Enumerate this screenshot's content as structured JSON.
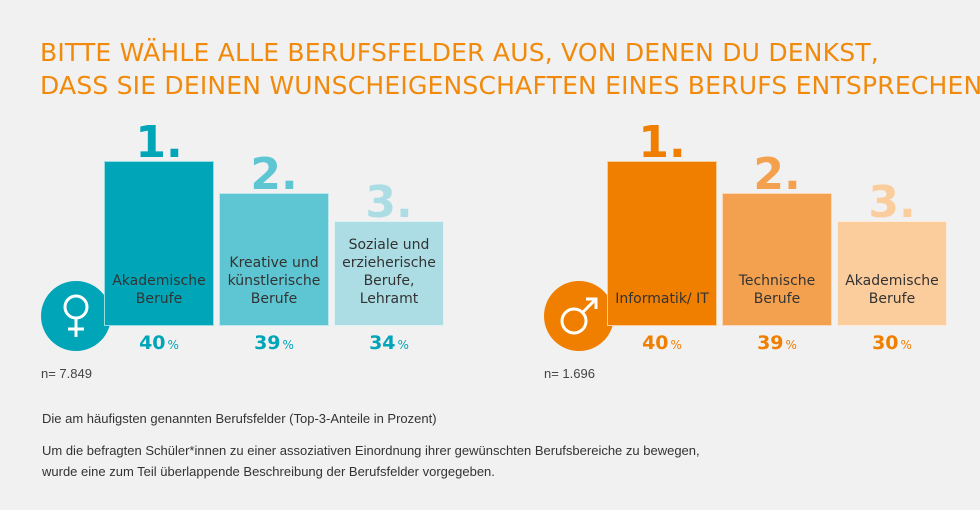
{
  "title_lines": [
    "BITTE WÄHLE ALLE BERUFSFELDER AUS, VON DENEN DU DENKST,",
    "DASS SIE DEINEN WUNSCHEIGENSCHAFTEN EINES BERUFS ENTSPRECHEN."
  ],
  "chart_data": [
    {
      "type": "bar",
      "group": "female",
      "icon": "female-symbol-icon",
      "n_label": "n= 7.849",
      "categories": [
        "Akademische Berufe",
        "Kreative und künstlerische Berufe",
        "Soziale und erzieherische Berufe, Lehramt"
      ],
      "ranks": [
        "1.",
        "2.",
        "3."
      ],
      "values": [
        40,
        39,
        34
      ],
      "value_labels": [
        "40",
        "39",
        "34"
      ],
      "unit": "%",
      "colors": [
        "#00a5b8",
        "#5ec5d2",
        "#acdde5"
      ]
    },
    {
      "type": "bar",
      "group": "male",
      "icon": "male-symbol-icon",
      "n_label": "n= 1.696",
      "categories": [
        "Informatik/ IT",
        "Technische Berufe",
        "Akademische Berufe"
      ],
      "ranks": [
        "1.",
        "2.",
        "3."
      ],
      "values": [
        40,
        39,
        30
      ],
      "value_labels": [
        "40",
        "39",
        "30"
      ],
      "unit": "%",
      "colors": [
        "#f07f00",
        "#f4a14f",
        "#fbcc9c"
      ]
    }
  ],
  "footnote": "Die am häufigsten genannten Berufsfelder (Top-3-Anteile in Prozent)",
  "note": "Um die befragten Schüler*innen zu einer assoziativen Einordnung ihrer gewünschten Berufsbereiche zu bewegen, wurde eine zum Teil überlappende Beschreibung der Berufsfelder vorgegeben."
}
